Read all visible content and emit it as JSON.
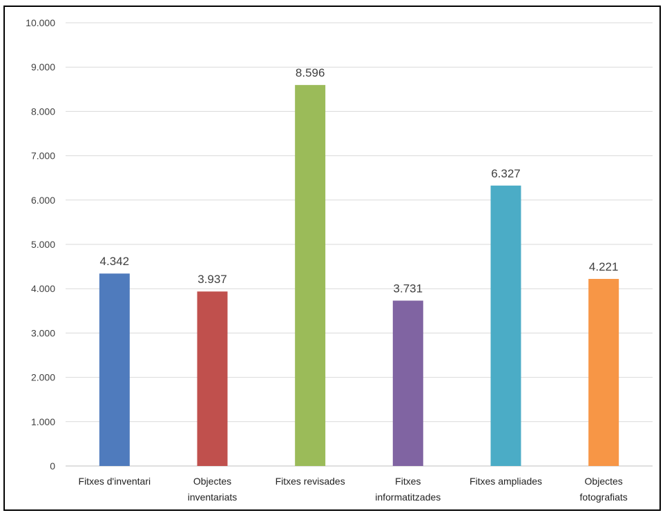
{
  "chart_data": {
    "type": "bar",
    "title": "",
    "xlabel": "",
    "ylabel": "",
    "categories": [
      [
        "Fitxes d'inventari"
      ],
      [
        "Objectes",
        "inventariats"
      ],
      [
        "Fitxes revisades"
      ],
      [
        "Fitxes",
        "informatitzades"
      ],
      [
        "Fitxes ampliades"
      ],
      [
        "Objectes",
        "fotografiats"
      ]
    ],
    "values": [
      4342,
      3937,
      8596,
      3731,
      6327,
      4221
    ],
    "value_labels": [
      "4.342",
      "3.937",
      "8.596",
      "3.731",
      "6.327",
      "4.221"
    ],
    "colors": [
      "#4f7bbd",
      "#c0504d",
      "#9bbb59",
      "#8064a2",
      "#4bacc6",
      "#f79646"
    ],
    "ylim": [
      0,
      10000
    ],
    "yticks": [
      0,
      1000,
      2000,
      3000,
      4000,
      5000,
      6000,
      7000,
      8000,
      9000,
      10000
    ],
    "ytick_labels": [
      "0",
      "1.000",
      "2.000",
      "3.000",
      "4.000",
      "5.000",
      "6.000",
      "7.000",
      "8.000",
      "9.000",
      "10.000"
    ],
    "grid": true,
    "legend": "none"
  }
}
